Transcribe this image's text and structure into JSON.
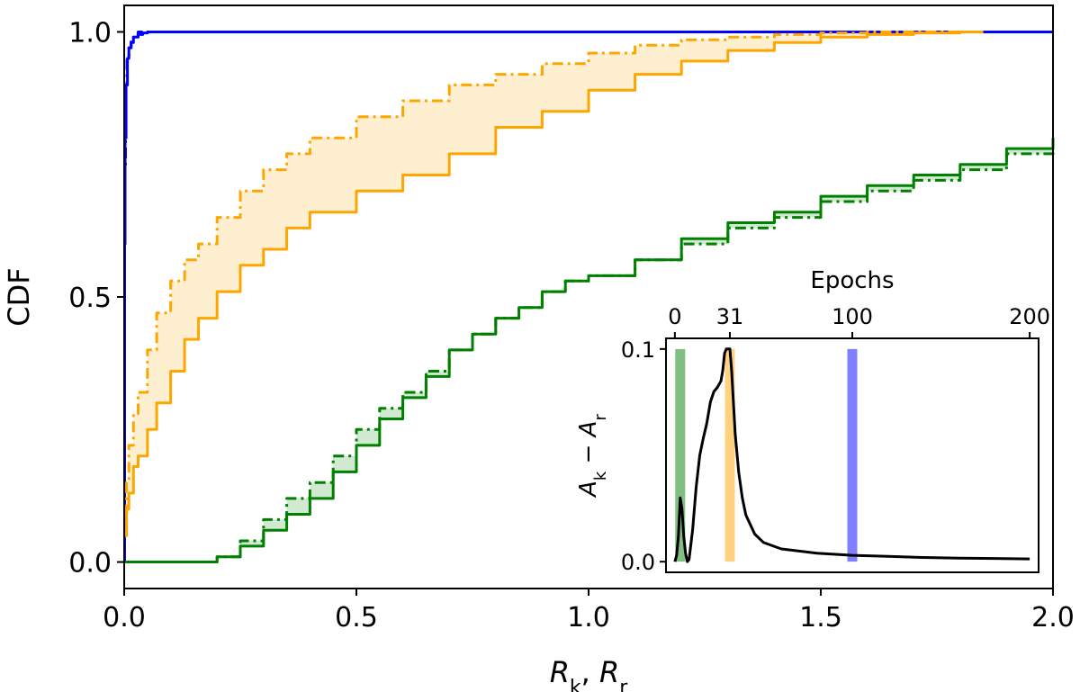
{
  "chart_data": [
    {
      "type": "line",
      "name": "main-cdf",
      "xlabel": "R_k, R_r",
      "xlabel_parts": {
        "var1": "R",
        "sub1": "k",
        "sep": ", ",
        "var2": "R",
        "sub2": "r"
      },
      "ylabel": "CDF",
      "xlim": [
        0.0,
        2.0
      ],
      "ylim": [
        -0.05,
        1.05
      ],
      "xticks": [
        0.0,
        0.5,
        1.0,
        1.5,
        2.0
      ],
      "xtick_labels": [
        "0.0",
        "0.5",
        "1.0",
        "1.5",
        "2.0"
      ],
      "yticks": [
        0.0,
        0.5,
        1.0
      ],
      "ytick_labels": [
        "0.0",
        "0.5",
        "1.0"
      ],
      "grid": false,
      "series": [
        {
          "name": "epoch-0-solid",
          "color": "#0000ff",
          "style": "solid",
          "group": "blue",
          "x": [
            0.0,
            0.001,
            0.002,
            0.004,
            0.007,
            0.01,
            0.015,
            0.02,
            0.03,
            0.04,
            0.05,
            0.06,
            0.07,
            2.0
          ],
          "y": [
            0.0,
            0.6,
            0.8,
            0.9,
            0.95,
            0.97,
            0.98,
            0.99,
            0.995,
            0.998,
            1.0,
            1.0,
            1.0,
            1.0
          ]
        },
        {
          "name": "epoch-0-dashdot",
          "color": "#0000ff",
          "style": "dashdot",
          "group": "blue",
          "x": [
            0.0,
            0.001,
            0.003,
            0.006,
            0.01,
            0.015,
            0.02,
            0.025,
            0.03,
            0.04
          ],
          "y": [
            0.0,
            0.75,
            0.9,
            0.95,
            0.97,
            0.985,
            0.99,
            0.995,
            1.0,
            1.0
          ]
        },
        {
          "name": "epoch-31-solid",
          "color": "#ffa500",
          "style": "solid",
          "group": "orange",
          "x": [
            0.0,
            0.005,
            0.01,
            0.02,
            0.03,
            0.05,
            0.07,
            0.1,
            0.13,
            0.16,
            0.2,
            0.25,
            0.3,
            0.35,
            0.4,
            0.5,
            0.6,
            0.7,
            0.8,
            0.9,
            1.0,
            1.1,
            1.2,
            1.3,
            1.4,
            1.5,
            1.6,
            1.7,
            1.8,
            1.85
          ],
          "y": [
            0.05,
            0.1,
            0.13,
            0.18,
            0.2,
            0.25,
            0.3,
            0.36,
            0.42,
            0.46,
            0.51,
            0.56,
            0.59,
            0.63,
            0.66,
            0.7,
            0.73,
            0.77,
            0.82,
            0.85,
            0.89,
            0.92,
            0.945,
            0.965,
            0.98,
            0.99,
            0.995,
            0.998,
            1.0,
            1.0
          ]
        },
        {
          "name": "epoch-31-dashdot",
          "color": "#ffa500",
          "style": "dashdot",
          "group": "orange",
          "x": [
            0.0,
            0.005,
            0.01,
            0.02,
            0.03,
            0.05,
            0.07,
            0.1,
            0.13,
            0.16,
            0.2,
            0.25,
            0.3,
            0.35,
            0.4,
            0.5,
            0.6,
            0.7,
            0.8,
            0.9,
            1.0,
            1.1,
            1.2,
            1.3,
            1.4,
            1.5,
            1.6,
            1.7,
            1.8,
            1.85
          ],
          "y": [
            0.05,
            0.15,
            0.22,
            0.28,
            0.32,
            0.4,
            0.47,
            0.53,
            0.57,
            0.6,
            0.65,
            0.7,
            0.74,
            0.77,
            0.8,
            0.84,
            0.87,
            0.9,
            0.92,
            0.94,
            0.96,
            0.975,
            0.985,
            0.99,
            0.995,
            0.998,
            1.0,
            1.0,
            1.0,
            1.0
          ]
        },
        {
          "name": "epoch-100-solid",
          "color": "#008000",
          "style": "solid",
          "group": "green",
          "x": [
            0.0,
            0.15,
            0.2,
            0.25,
            0.3,
            0.35,
            0.4,
            0.45,
            0.5,
            0.55,
            0.6,
            0.65,
            0.7,
            0.75,
            0.8,
            0.85,
            0.9,
            0.95,
            1.0,
            1.1,
            1.2,
            1.3,
            1.4,
            1.5,
            1.6,
            1.7,
            1.8,
            1.9,
            2.0
          ],
          "y": [
            0.0,
            0.0,
            0.01,
            0.03,
            0.06,
            0.09,
            0.12,
            0.17,
            0.22,
            0.27,
            0.31,
            0.35,
            0.4,
            0.43,
            0.46,
            0.48,
            0.51,
            0.53,
            0.54,
            0.57,
            0.61,
            0.64,
            0.66,
            0.69,
            0.71,
            0.73,
            0.75,
            0.78,
            0.8
          ]
        },
        {
          "name": "epoch-100-dashdot",
          "color": "#008000",
          "style": "dashdot",
          "group": "green",
          "x": [
            0.0,
            0.15,
            0.2,
            0.25,
            0.3,
            0.35,
            0.4,
            0.45,
            0.5,
            0.55,
            0.6,
            0.65,
            0.7,
            0.75,
            0.8,
            0.85,
            0.9,
            0.95,
            1.0,
            1.1,
            1.2,
            1.3,
            1.4,
            1.5,
            1.6,
            1.7,
            1.8,
            1.9,
            2.0
          ],
          "y": [
            0.0,
            0.0,
            0.01,
            0.04,
            0.08,
            0.12,
            0.15,
            0.2,
            0.25,
            0.29,
            0.32,
            0.36,
            0.4,
            0.43,
            0.46,
            0.48,
            0.51,
            0.53,
            0.54,
            0.57,
            0.6,
            0.63,
            0.65,
            0.68,
            0.7,
            0.72,
            0.74,
            0.77,
            0.8
          ]
        }
      ]
    },
    {
      "type": "line",
      "name": "inset-accuracy-gap",
      "top_xlabel": "Epochs",
      "ylabel": "A_k - A_r",
      "ylabel_parts": {
        "var1": "A",
        "sub1": "k",
        "op": " − ",
        "var2": "A",
        "sub2": "r"
      },
      "xlim": [
        -5,
        205
      ],
      "ylim": [
        -0.005,
        0.105
      ],
      "xticks": [
        0,
        31,
        100,
        200
      ],
      "xtick_labels": [
        "0",
        "31",
        "100",
        "200"
      ],
      "yticks": [
        0.0,
        0.1
      ],
      "ytick_labels": [
        "0.0",
        "0.1"
      ],
      "highlight_epochs": [
        {
          "epoch": 3,
          "color": "#008000"
        },
        {
          "epoch": 31,
          "color": "#ffa500"
        },
        {
          "epoch": 100,
          "color": "#0000ff"
        }
      ],
      "series": [
        {
          "name": "gap-curve",
          "color": "#000000",
          "x": [
            0,
            1,
            2,
            3,
            4,
            5,
            6,
            7,
            8,
            10,
            12,
            14,
            16,
            18,
            20,
            22,
            24,
            26,
            27,
            28,
            29,
            30,
            31,
            32,
            33,
            34,
            36,
            38,
            40,
            45,
            50,
            60,
            70,
            80,
            100,
            120,
            140,
            160,
            180,
            200
          ],
          "y": [
            0.0,
            0.003,
            0.012,
            0.03,
            0.025,
            0.012,
            0.004,
            0.0,
            0.001,
            0.015,
            0.035,
            0.05,
            0.058,
            0.065,
            0.075,
            0.08,
            0.082,
            0.085,
            0.09,
            0.098,
            0.1,
            0.1,
            0.1,
            0.09,
            0.075,
            0.06,
            0.042,
            0.03,
            0.022,
            0.013,
            0.009,
            0.006,
            0.005,
            0.004,
            0.003,
            0.0025,
            0.002,
            0.0017,
            0.0015,
            0.0013
          ]
        }
      ]
    }
  ]
}
